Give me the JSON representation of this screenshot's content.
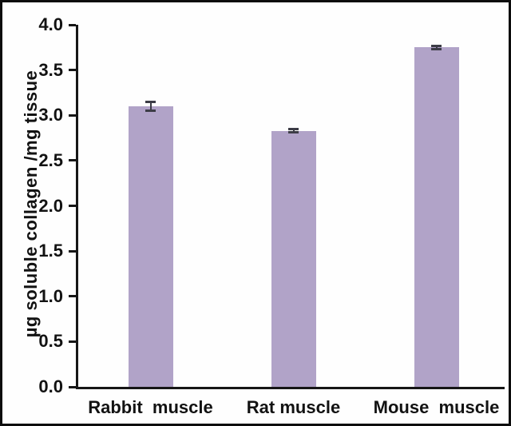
{
  "chart_data": {
    "type": "bar",
    "title": "",
    "categories": [
      "Rabbit  muscle",
      "Rat muscle",
      "Mouse  muscle"
    ],
    "values": [
      3.1,
      2.83,
      3.75
    ],
    "errors": [
      0.05,
      0.02,
      0.02
    ],
    "xlabel": "",
    "ylabel": "µg soluble collagen /mg tissue",
    "ylim": [
      0,
      4
    ],
    "ytick_step": 0.5,
    "ytick_labels": [
      "0.0",
      "0.5",
      "1.0",
      "1.5",
      "2.0",
      "2.5",
      "3.0",
      "3.5",
      "4.0"
    ],
    "grid": false,
    "legend": null,
    "bar_color": "#b1a3c8",
    "error_color": "#3c3c46",
    "axis_color": "#161616",
    "frame_color": "#0d0d0d"
  }
}
